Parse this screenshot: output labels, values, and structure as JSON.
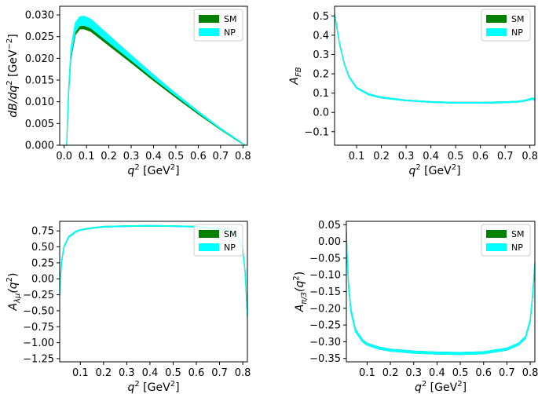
{
  "legend_colors": {
    "SM": "#008000",
    "NP": "#00ffff"
  },
  "chart_data": [
    {
      "type": "area",
      "id": "dBdq2",
      "xlabel_main": "q",
      "xlabel_sup": "2",
      "xlabel_unit": " [GeV",
      "xlabel_unit_sup": "2",
      "xlabel_close": "]",
      "ylabel_main": "dB/dq",
      "ylabel_sup": "2",
      "ylabel_unit": " [GeV",
      "ylabel_unit_sup": "−2",
      "ylabel_close": "]",
      "xlim": [
        -0.02,
        0.82
      ],
      "ylim": [
        0,
        0.032
      ],
      "xticks": [
        0.0,
        0.1,
        0.2,
        0.3,
        0.4,
        0.5,
        0.6,
        0.7,
        0.8
      ],
      "xticklabels": [
        "0.0",
        "0.1",
        "0.2",
        "0.3",
        "0.4",
        "0.5",
        "0.6",
        "0.7",
        "0.8"
      ],
      "yticks": [
        0,
        0.005,
        0.01,
        0.015,
        0.02,
        0.025,
        0.03
      ],
      "yticklabels": [
        "0.000",
        "0.005",
        "0.010",
        "0.015",
        "0.020",
        "0.025",
        "0.030"
      ],
      "legend": {
        "position": "upper right",
        "entries": [
          "SM",
          "NP"
        ]
      },
      "series": [
        {
          "name": "SM",
          "x": [
            0.011,
            0.02,
            0.03,
            0.05,
            0.07,
            0.09,
            0.12,
            0.2,
            0.3,
            0.4,
            0.5,
            0.6,
            0.7,
            0.78,
            0.8,
            0.81
          ],
          "lower": [
            0,
            0.012,
            0.02,
            0.0255,
            0.0268,
            0.0268,
            0.0262,
            0.023,
            0.019,
            0.0149,
            0.011,
            0.0072,
            0.0036,
            0.0009,
            0.0003,
            0
          ],
          "upper": [
            0,
            0.0124,
            0.0206,
            0.0262,
            0.0275,
            0.0275,
            0.0269,
            0.0236,
            0.0195,
            0.0153,
            0.0113,
            0.0074,
            0.0037,
            0.001,
            0.0003,
            0
          ]
        },
        {
          "name": "NP",
          "x": [
            0.011,
            0.02,
            0.03,
            0.05,
            0.07,
            0.09,
            0.12,
            0.2,
            0.3,
            0.4,
            0.5,
            0.6,
            0.7,
            0.78,
            0.8,
            0.81
          ],
          "lower": [
            0,
            0.0122,
            0.0205,
            0.0262,
            0.0276,
            0.0276,
            0.027,
            0.0237,
            0.0196,
            0.0154,
            0.0114,
            0.0075,
            0.0037,
            0.001,
            0.0003,
            0
          ],
          "upper": [
            0,
            0.0133,
            0.0222,
            0.0282,
            0.0296,
            0.0297,
            0.029,
            0.0253,
            0.0207,
            0.0162,
            0.0119,
            0.0078,
            0.0039,
            0.0011,
            0.0003,
            0
          ]
        }
      ]
    },
    {
      "type": "area",
      "id": "AFB",
      "xlabel_main": "q",
      "xlabel_sup": "2",
      "xlabel_unit": " [GeV",
      "xlabel_unit_sup": "2",
      "xlabel_close": "]",
      "ylabel_main": "A",
      "ylabel_sub": "FB",
      "xlim": [
        0.011,
        0.82
      ],
      "ylim": [
        -0.17,
        0.55
      ],
      "xticks": [
        0.1,
        0.2,
        0.3,
        0.4,
        0.5,
        0.6,
        0.7,
        0.8
      ],
      "xticklabels": [
        "0.1",
        "0.2",
        "0.3",
        "0.4",
        "0.5",
        "0.6",
        "0.7",
        "0.8"
      ],
      "yticks": [
        -0.1,
        0.0,
        0.1,
        0.2,
        0.3,
        0.4,
        0.5
      ],
      "yticklabels": [
        "−0.1",
        "0.0",
        "0.1",
        "0.2",
        "0.3",
        "0.4",
        "0.5"
      ],
      "legend": {
        "position": "upper right",
        "entries": [
          "SM",
          "NP"
        ]
      },
      "series": [
        {
          "name": "SM",
          "x": [
            0.011,
            0.02,
            0.03,
            0.05,
            0.07,
            0.1,
            0.15,
            0.2,
            0.3,
            0.4,
            0.5,
            0.6,
            0.7,
            0.75,
            0.78,
            0.8,
            0.81,
            0.82
          ],
          "lower": [
            0.505,
            0.44,
            0.36,
            0.25,
            0.18,
            0.125,
            0.09,
            0.075,
            0.06,
            0.052,
            0.048,
            0.048,
            0.05,
            0.053,
            0.058,
            0.065,
            0.068,
            0.062
          ],
          "upper": [
            0.51,
            0.445,
            0.365,
            0.255,
            0.185,
            0.13,
            0.095,
            0.08,
            0.064,
            0.056,
            0.052,
            0.052,
            0.055,
            0.058,
            0.063,
            0.071,
            0.075,
            0.07
          ]
        },
        {
          "name": "NP",
          "x": [
            0.011,
            0.02,
            0.03,
            0.05,
            0.07,
            0.1,
            0.15,
            0.2,
            0.3,
            0.4,
            0.5,
            0.6,
            0.7,
            0.75,
            0.78,
            0.8,
            0.81,
            0.82
          ],
          "lower": [
            0.505,
            0.44,
            0.36,
            0.25,
            0.18,
            0.125,
            0.09,
            0.075,
            0.06,
            0.052,
            0.048,
            0.048,
            0.05,
            0.053,
            0.058,
            0.065,
            0.068,
            0.062
          ],
          "upper": [
            0.51,
            0.445,
            0.365,
            0.255,
            0.185,
            0.13,
            0.095,
            0.08,
            0.064,
            0.056,
            0.052,
            0.052,
            0.055,
            0.058,
            0.063,
            0.071,
            0.075,
            0.07
          ]
        }
      ]
    },
    {
      "type": "area",
      "id": "Alambda",
      "xlabel_main": "q",
      "xlabel_sup": "2",
      "xlabel_unit": " [GeV",
      "xlabel_unit_sup": "2",
      "xlabel_close": "]",
      "ylabel_main": "A",
      "ylabel_sub": "λμ",
      "ylabel_paren": "(q",
      "ylabel_sup": "2",
      "ylabel_close": ")",
      "xlim": [
        0.011,
        0.82
      ],
      "ylim": [
        -1.3,
        0.9
      ],
      "xticks": [
        0.1,
        0.2,
        0.3,
        0.4,
        0.5,
        0.6,
        0.7,
        0.8
      ],
      "xticklabels": [
        "0.1",
        "0.2",
        "0.3",
        "0.4",
        "0.5",
        "0.6",
        "0.7",
        "0.8"
      ],
      "yticks": [
        -1.25,
        -1.0,
        -0.75,
        -0.5,
        -0.25,
        0.0,
        0.25,
        0.5,
        0.75
      ],
      "yticklabels": [
        "−1.25",
        "−1.00",
        "−0.75",
        "−0.50",
        "−0.25",
        "0.00",
        "0.25",
        "0.50",
        "0.75"
      ],
      "legend": {
        "position": "upper right",
        "entries": [
          "SM",
          "NP"
        ]
      },
      "series": [
        {
          "name": "SM",
          "x": [
            0.011,
            0.015,
            0.02,
            0.03,
            0.05,
            0.08,
            0.1,
            0.15,
            0.2,
            0.3,
            0.4,
            0.5,
            0.6,
            0.7,
            0.75,
            0.78,
            0.8,
            0.81,
            0.82
          ],
          "lower": [
            -0.27,
            0.05,
            0.28,
            0.5,
            0.65,
            0.73,
            0.76,
            0.79,
            0.81,
            0.82,
            0.825,
            0.82,
            0.81,
            0.78,
            0.74,
            0.65,
            0.45,
            0.1,
            -0.6
          ],
          "upper": [
            -0.25,
            0.07,
            0.3,
            0.515,
            0.665,
            0.745,
            0.77,
            0.8,
            0.82,
            0.83,
            0.835,
            0.83,
            0.82,
            0.79,
            0.75,
            0.66,
            0.46,
            0.12,
            -0.58
          ]
        },
        {
          "name": "NP",
          "x": [
            0.011,
            0.015,
            0.02,
            0.03,
            0.05,
            0.08,
            0.1,
            0.15,
            0.2,
            0.3,
            0.4,
            0.5,
            0.6,
            0.7,
            0.75,
            0.78,
            0.8,
            0.81,
            0.82
          ],
          "lower": [
            -0.27,
            0.05,
            0.28,
            0.5,
            0.65,
            0.73,
            0.76,
            0.79,
            0.81,
            0.82,
            0.825,
            0.82,
            0.81,
            0.78,
            0.74,
            0.65,
            0.45,
            0.1,
            -0.6
          ],
          "upper": [
            -0.25,
            0.07,
            0.3,
            0.515,
            0.665,
            0.745,
            0.77,
            0.8,
            0.82,
            0.83,
            0.835,
            0.83,
            0.82,
            0.79,
            0.75,
            0.66,
            0.46,
            0.12,
            -0.58
          ]
        }
      ]
    },
    {
      "type": "area",
      "id": "Api3",
      "xlabel_main": "q",
      "xlabel_sup": "2",
      "xlabel_unit": " [GeV",
      "xlabel_unit_sup": "2",
      "xlabel_close": "]",
      "ylabel_main": "A",
      "ylabel_sub": "π/3",
      "ylabel_paren": "(q",
      "ylabel_sup": "2",
      "ylabel_close": ")",
      "xlim": [
        0.011,
        0.82
      ],
      "ylim": [
        -0.36,
        0.06
      ],
      "xticks": [
        0.1,
        0.2,
        0.3,
        0.4,
        0.5,
        0.6,
        0.7,
        0.8
      ],
      "xticklabels": [
        "0.1",
        "0.2",
        "0.3",
        "0.4",
        "0.5",
        "0.6",
        "0.7",
        "0.8"
      ],
      "yticks": [
        -0.35,
        -0.3,
        -0.25,
        -0.2,
        -0.15,
        -0.1,
        -0.05,
        0.0,
        0.05
      ],
      "yticklabels": [
        "−0.35",
        "−0.30",
        "−0.25",
        "−0.20",
        "−0.15",
        "−0.10",
        "−0.05",
        "0.00",
        "0.05"
      ],
      "legend": {
        "position": "upper right",
        "entries": [
          "SM",
          "NP"
        ]
      },
      "series": [
        {
          "name": "SM",
          "x": [
            0.011,
            0.015,
            0.02,
            0.03,
            0.05,
            0.08,
            0.1,
            0.15,
            0.2,
            0.3,
            0.4,
            0.5,
            0.6,
            0.7,
            0.75,
            0.78,
            0.8,
            0.81,
            0.82
          ],
          "lower": [
            0.02,
            -0.06,
            -0.13,
            -0.21,
            -0.27,
            -0.3,
            -0.31,
            -0.322,
            -0.328,
            -0.334,
            -0.337,
            -0.338,
            -0.336,
            -0.325,
            -0.31,
            -0.29,
            -0.24,
            -0.17,
            -0.07
          ],
          "upper": [
            0.03,
            -0.05,
            -0.12,
            -0.2,
            -0.262,
            -0.294,
            -0.304,
            -0.316,
            -0.322,
            -0.328,
            -0.331,
            -0.332,
            -0.33,
            -0.319,
            -0.304,
            -0.284,
            -0.234,
            -0.164,
            -0.064
          ]
        },
        {
          "name": "NP",
          "x": [
            0.011,
            0.015,
            0.02,
            0.03,
            0.05,
            0.08,
            0.1,
            0.15,
            0.2,
            0.3,
            0.4,
            0.5,
            0.6,
            0.7,
            0.75,
            0.78,
            0.8,
            0.81,
            0.82
          ],
          "lower": [
            0.02,
            -0.06,
            -0.13,
            -0.21,
            -0.27,
            -0.3,
            -0.31,
            -0.322,
            -0.328,
            -0.334,
            -0.337,
            -0.338,
            -0.336,
            -0.325,
            -0.31,
            -0.29,
            -0.24,
            -0.17,
            -0.07
          ],
          "upper": [
            0.03,
            -0.05,
            -0.12,
            -0.2,
            -0.262,
            -0.294,
            -0.304,
            -0.316,
            -0.322,
            -0.328,
            -0.331,
            -0.332,
            -0.33,
            -0.319,
            -0.304,
            -0.284,
            -0.234,
            -0.164,
            -0.064
          ]
        }
      ]
    }
  ]
}
